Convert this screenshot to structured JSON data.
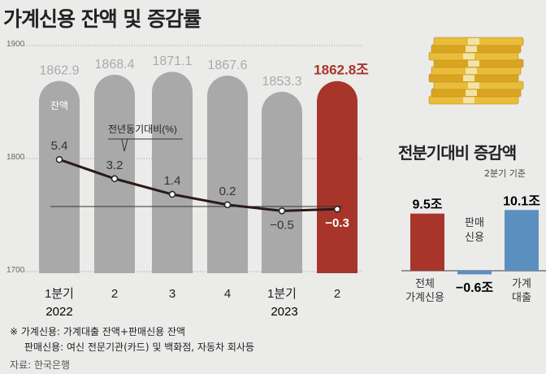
{
  "title": "가계신용 잔액 및 증감률",
  "chart_data": [
    {
      "type": "bar",
      "title": "가계신용 잔액 및 증감률",
      "y_ticks": [
        "1900",
        "1800",
        "1700"
      ],
      "ylim": [
        1700,
        1900
      ],
      "categories": [
        "1분기",
        "2",
        "3",
        "4",
        "1분기",
        "2"
      ],
      "year_labels": [
        "2022",
        "2023"
      ],
      "balance_label": "잔액",
      "values": [
        1862.9,
        1868.4,
        1871.1,
        1867.6,
        1853.3,
        1862.8
      ],
      "value_labels": [
        "1862.9",
        "1868.4",
        "1871.1",
        "1867.6",
        "1853.3",
        "1862.8조"
      ],
      "line_series": {
        "name": "전년동기대비(%)",
        "values": [
          5.4,
          3.2,
          1.4,
          0.2,
          -0.5,
          -0.3
        ],
        "labels": [
          "5.4",
          "3.2",
          "1.4",
          "0.2",
          "−0.5",
          "−0.3"
        ]
      },
      "colors": {
        "bar": "#a9a9a9",
        "highlight": "#a8352a",
        "line": "#2a1a1a"
      }
    },
    {
      "type": "bar",
      "title": "전분기대비 증감액",
      "subtitle": "2분기 기준",
      "categories": [
        "전체 가계신용",
        "판매 신용",
        "가계 대출"
      ],
      "category_lines": [
        [
          "전체",
          "가계신용"
        ],
        [
          "판매",
          "신용"
        ],
        [
          "가계",
          "대출"
        ]
      ],
      "values": [
        9.5,
        -0.6,
        10.1
      ],
      "value_labels": [
        "9.5조",
        "−0.6조",
        "10.1조"
      ],
      "colors": [
        "#a8352a",
        "#5b8fc0",
        "#5b8fc0"
      ]
    }
  ],
  "notes": [
    "※ 가계신용: 가계대출 잔액+판매신용 잔액",
    "판매신용: 여신 전문기관(카드) 및 백화점, 자동차 회사등"
  ],
  "source": "자료: 한국은행"
}
